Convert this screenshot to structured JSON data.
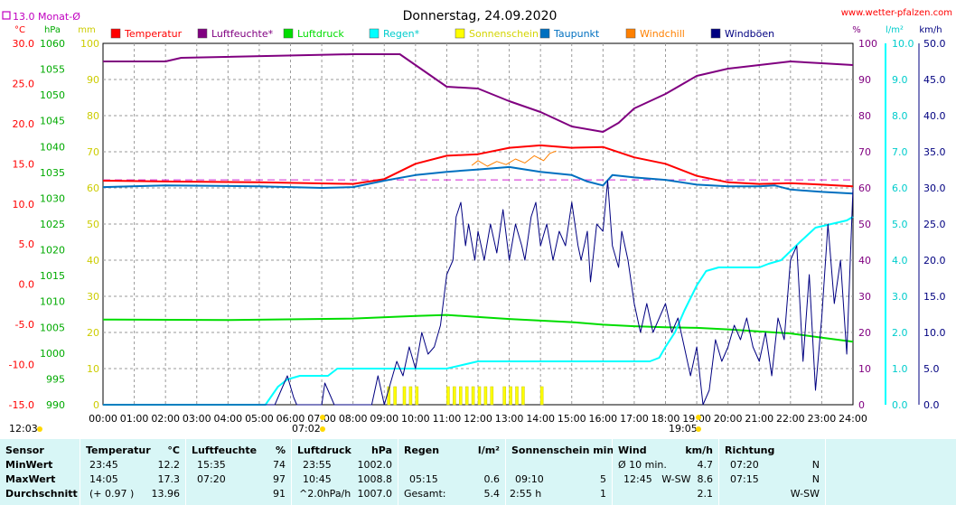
{
  "header": {
    "title": "Donnerstag, 24.09.2020",
    "site": "www.wetter-pfalzen.com",
    "monthly_avg": "13.0 Monat-Ø"
  },
  "axes_units": {
    "temp": "°C",
    "pressure": "hPa",
    "mm": "mm",
    "percent": "%",
    "rain": "l/m²",
    "wind": "km/h"
  },
  "legend": [
    {
      "label": "Temperatur",
      "color": "#ff0000"
    },
    {
      "label": "Luftfeuchte*",
      "color": "#800080"
    },
    {
      "label": "Luftdruck",
      "color": "#00dd00"
    },
    {
      "label": "Regen*",
      "color": "#00ffff"
    },
    {
      "label": "Sonnenschein",
      "color": "#ffff00"
    },
    {
      "label": "Taupunkt",
      "color": "#0070c0"
    },
    {
      "label": "Windchill",
      "color": "#ff8000"
    },
    {
      "label": "Windböen",
      "color": "#000080"
    }
  ],
  "footer": {
    "sunrise": "07:02",
    "sunset": "19:05",
    "left_time": "12:03"
  },
  "chart_data": {
    "type": "line",
    "x": [
      "00:00",
      "01:00",
      "02:00",
      "03:00",
      "04:00",
      "05:00",
      "06:00",
      "07:00",
      "08:00",
      "09:00",
      "10:00",
      "11:00",
      "12:00",
      "13:00",
      "14:00",
      "15:00",
      "16:00",
      "17:00",
      "18:00",
      "19:00",
      "20:00",
      "21:00",
      "22:00",
      "23:00",
      "24:00"
    ],
    "scales": {
      "temp": {
        "ticks": [
          "30.0",
          "25.0",
          "20.0",
          "15.0",
          "10.0",
          "5.0",
          "0.0",
          "-5.0",
          "-10.0",
          "-15.0"
        ],
        "ylim": [
          -15,
          30
        ]
      },
      "pressure": {
        "ticks": [
          "1060",
          "1055",
          "1050",
          "1045",
          "1040",
          "1035",
          "1030",
          "1025",
          "1020",
          "1015",
          "1010",
          "1005",
          "1000",
          "995",
          "990"
        ],
        "ylim": [
          990,
          1060
        ]
      },
      "mm": {
        "ticks": [
          "100",
          "90",
          "80",
          "70",
          "60",
          "50",
          "40",
          "30",
          "20",
          "10",
          "0"
        ],
        "ylim": [
          0,
          100
        ]
      },
      "percent": {
        "ticks": [
          "100",
          "90",
          "80",
          "70",
          "60",
          "50",
          "40",
          "30",
          "20",
          "10",
          "0"
        ],
        "ylim": [
          0,
          100
        ]
      },
      "rain": {
        "ticks": [
          "10.0",
          "9.0",
          "8.0",
          "7.0",
          "6.0",
          "5.0",
          "4.0",
          "3.0",
          "2.0",
          "1.0",
          "0.0"
        ],
        "ylim": [
          0,
          10
        ]
      },
      "wind": {
        "ticks": [
          "50.0",
          "45.0",
          "40.0",
          "35.0",
          "30.0",
          "25.0",
          "20.0",
          "15.0",
          "10.0",
          "5.0",
          "0.0"
        ],
        "ylim": [
          0,
          50
        ]
      }
    },
    "monthly_avg_temp": 13.0,
    "series": [
      {
        "name": "Temperatur",
        "scale": "temp",
        "color": "#ff0000",
        "width": 2,
        "points": [
          [
            0,
            12.9
          ],
          [
            2,
            12.8
          ],
          [
            5,
            12.7
          ],
          [
            8,
            12.5
          ],
          [
            9,
            13.1
          ],
          [
            10,
            15.0
          ],
          [
            11,
            16.0
          ],
          [
            12,
            16.2
          ],
          [
            13,
            17.0
          ],
          [
            14,
            17.3
          ],
          [
            15,
            17.0
          ],
          [
            16,
            17.1
          ],
          [
            17,
            15.8
          ],
          [
            18,
            15.0
          ],
          [
            19,
            13.5
          ],
          [
            20,
            12.7
          ],
          [
            21,
            12.5
          ],
          [
            22,
            12.6
          ],
          [
            23,
            12.4
          ],
          [
            24,
            12.2
          ]
        ]
      },
      {
        "name": "Luftfeuchte*",
        "scale": "percent",
        "color": "#800080",
        "width": 2,
        "points": [
          [
            0,
            95
          ],
          [
            2,
            95
          ],
          [
            2.5,
            96
          ],
          [
            8,
            97
          ],
          [
            9.5,
            97
          ],
          [
            10,
            94
          ],
          [
            11,
            88
          ],
          [
            12,
            87.5
          ],
          [
            13,
            84
          ],
          [
            14,
            81
          ],
          [
            15,
            77
          ],
          [
            16,
            75.5
          ],
          [
            16.5,
            78
          ],
          [
            17,
            82
          ],
          [
            18,
            86
          ],
          [
            19,
            91
          ],
          [
            20,
            93
          ],
          [
            21,
            94
          ],
          [
            22,
            95
          ],
          [
            23,
            94.5
          ],
          [
            24,
            94
          ]
        ]
      },
      {
        "name": "Luftdruck",
        "scale": "pressure",
        "color": "#00dd00",
        "width": 2,
        "points": [
          [
            0,
            1006.5
          ],
          [
            4,
            1006.4
          ],
          [
            8,
            1006.7
          ],
          [
            10,
            1007.2
          ],
          [
            11,
            1007.4
          ],
          [
            12,
            1007.0
          ],
          [
            13,
            1006.6
          ],
          [
            14,
            1006.3
          ],
          [
            15,
            1006.0
          ],
          [
            16,
            1005.5
          ],
          [
            17,
            1005.2
          ],
          [
            18,
            1005.0
          ],
          [
            19,
            1004.9
          ],
          [
            20,
            1004.6
          ],
          [
            21,
            1004.2
          ],
          [
            22,
            1003.8
          ],
          [
            23,
            1003.0
          ],
          [
            24,
            1002.2
          ]
        ]
      },
      {
        "name": "Regen*",
        "scale": "rain",
        "color": "#00ffff",
        "width": 2,
        "points": [
          [
            0,
            0
          ],
          [
            5.2,
            0
          ],
          [
            5.6,
            0.5
          ],
          [
            5.9,
            0.7
          ],
          [
            6.3,
            0.8
          ],
          [
            7.2,
            0.8
          ],
          [
            7.5,
            1.0
          ],
          [
            8,
            1.0
          ],
          [
            10,
            1.0
          ],
          [
            11,
            1.0
          ],
          [
            11.5,
            1.1
          ],
          [
            12,
            1.2
          ],
          [
            13,
            1.2
          ],
          [
            17,
            1.2
          ],
          [
            17.5,
            1.2
          ],
          [
            17.8,
            1.3
          ],
          [
            18,
            1.6
          ],
          [
            18.3,
            2.0
          ],
          [
            18.6,
            2.6
          ],
          [
            19,
            3.3
          ],
          [
            19.3,
            3.7
          ],
          [
            19.7,
            3.8
          ],
          [
            20.5,
            3.8
          ],
          [
            21,
            3.8
          ],
          [
            21.3,
            3.9
          ],
          [
            21.7,
            4.0
          ],
          [
            22.3,
            4.5
          ],
          [
            22.8,
            4.9
          ],
          [
            23.3,
            5.0
          ],
          [
            23.8,
            5.1
          ],
          [
            24,
            5.2
          ]
        ]
      },
      {
        "name": "Taupunkt",
        "scale": "temp",
        "color": "#0070c0",
        "width": 2,
        "points": [
          [
            0,
            12.1
          ],
          [
            2,
            12.3
          ],
          [
            5,
            12.2
          ],
          [
            7,
            12.0
          ],
          [
            8,
            12.1
          ],
          [
            9,
            12.9
          ],
          [
            10,
            13.6
          ],
          [
            11,
            14.0
          ],
          [
            12,
            14.3
          ],
          [
            13,
            14.6
          ],
          [
            14,
            14.0
          ],
          [
            15,
            13.6
          ],
          [
            15.5,
            12.8
          ],
          [
            16,
            12.3
          ],
          [
            16.3,
            13.6
          ],
          [
            17,
            13.3
          ],
          [
            18,
            13.0
          ],
          [
            19,
            12.4
          ],
          [
            20,
            12.2
          ],
          [
            21,
            12.2
          ],
          [
            21.5,
            12.3
          ],
          [
            22,
            11.8
          ],
          [
            23,
            11.5
          ],
          [
            24,
            11.3
          ]
        ]
      },
      {
        "name": "Windchill",
        "scale": "temp",
        "color": "#ff8000",
        "width": 1,
        "points": [
          [
            11.8,
            14.8
          ],
          [
            12,
            15.4
          ],
          [
            12.3,
            14.7
          ],
          [
            12.6,
            15.3
          ],
          [
            12.9,
            14.9
          ],
          [
            13.2,
            15.6
          ],
          [
            13.5,
            15.1
          ],
          [
            13.8,
            16.0
          ],
          [
            14.1,
            15.4
          ],
          [
            14.3,
            16.3
          ],
          [
            14.5,
            16.6
          ]
        ]
      },
      {
        "name": "Windböen",
        "scale": "wind",
        "color": "#000080",
        "width": 1,
        "points": [
          [
            0,
            0
          ],
          [
            5.5,
            0
          ],
          [
            5.7,
            2
          ],
          [
            5.9,
            4
          ],
          [
            6.1,
            1
          ],
          [
            6.2,
            0
          ],
          [
            7,
            0
          ],
          [
            7.1,
            3
          ],
          [
            7.3,
            1
          ],
          [
            7.4,
            0
          ],
          [
            8.6,
            0
          ],
          [
            8.8,
            4
          ],
          [
            9.0,
            0
          ],
          [
            9.2,
            3
          ],
          [
            9.4,
            6
          ],
          [
            9.6,
            4
          ],
          [
            9.8,
            8
          ],
          [
            10.0,
            5
          ],
          [
            10.2,
            10
          ],
          [
            10.4,
            7
          ],
          [
            10.6,
            8
          ],
          [
            10.8,
            11
          ],
          [
            11.0,
            18
          ],
          [
            11.2,
            20
          ],
          [
            11.3,
            26
          ],
          [
            11.45,
            28
          ],
          [
            11.6,
            22
          ],
          [
            11.7,
            25
          ],
          [
            11.9,
            20
          ],
          [
            12.0,
            24
          ],
          [
            12.2,
            20
          ],
          [
            12.4,
            25
          ],
          [
            12.6,
            21
          ],
          [
            12.8,
            27
          ],
          [
            13.0,
            20
          ],
          [
            13.2,
            25
          ],
          [
            13.4,
            22
          ],
          [
            13.5,
            20
          ],
          [
            13.7,
            26
          ],
          [
            13.85,
            28
          ],
          [
            14.0,
            22
          ],
          [
            14.2,
            25
          ],
          [
            14.4,
            20
          ],
          [
            14.6,
            24
          ],
          [
            14.8,
            22
          ],
          [
            15.0,
            28
          ],
          [
            15.2,
            22
          ],
          [
            15.3,
            20
          ],
          [
            15.5,
            24
          ],
          [
            15.6,
            17
          ],
          [
            15.8,
            25
          ],
          [
            16.0,
            24
          ],
          [
            16.15,
            31
          ],
          [
            16.3,
            22
          ],
          [
            16.5,
            19
          ],
          [
            16.6,
            24
          ],
          [
            16.8,
            20
          ],
          [
            17.0,
            14
          ],
          [
            17.2,
            10
          ],
          [
            17.4,
            14
          ],
          [
            17.6,
            10
          ],
          [
            17.8,
            12
          ],
          [
            18.0,
            14
          ],
          [
            18.2,
            10
          ],
          [
            18.4,
            12
          ],
          [
            18.6,
            8
          ],
          [
            18.8,
            4
          ],
          [
            19.0,
            8
          ],
          [
            19.2,
            0
          ],
          [
            19.4,
            2
          ],
          [
            19.6,
            9
          ],
          [
            19.8,
            6
          ],
          [
            20.0,
            8
          ],
          [
            20.2,
            11
          ],
          [
            20.4,
            9
          ],
          [
            20.6,
            12
          ],
          [
            20.8,
            8
          ],
          [
            21.0,
            6
          ],
          [
            21.2,
            10
          ],
          [
            21.4,
            4
          ],
          [
            21.6,
            12
          ],
          [
            21.8,
            9
          ],
          [
            22.0,
            20
          ],
          [
            22.2,
            22
          ],
          [
            22.4,
            6
          ],
          [
            22.6,
            18
          ],
          [
            22.8,
            2
          ],
          [
            23.0,
            12
          ],
          [
            23.2,
            25
          ],
          [
            23.4,
            14
          ],
          [
            23.6,
            20
          ],
          [
            23.8,
            7
          ],
          [
            24,
            30
          ]
        ]
      }
    ],
    "sunshine_bars": [
      9.1,
      9.3,
      9.6,
      9.8,
      10.0,
      11.0,
      11.2,
      11.4,
      11.6,
      11.8,
      12.0,
      12.2,
      12.4,
      12.8,
      13.0,
      13.2,
      13.4,
      14.0
    ]
  },
  "stats": {
    "columns": [
      {
        "title": "Sensor",
        "unit": "",
        "rows": [
          "MinWert",
          "MaxWert",
          "Durchschnitt"
        ]
      },
      {
        "title": "Temperatur",
        "unit": "°C",
        "rows": [
          [
            "23:45",
            "12.2"
          ],
          [
            "14:05",
            "17.3"
          ],
          [
            "(+ 0.97 )",
            "13.96"
          ]
        ]
      },
      {
        "title": "Luftfeuchte",
        "unit": "%",
        "rows": [
          [
            "15:35",
            "74"
          ],
          [
            "07:20",
            "97"
          ],
          [
            "",
            "91"
          ]
        ]
      },
      {
        "title": "Luftdruck",
        "unit": "hPa",
        "rows": [
          [
            "23:55",
            "1002.0"
          ],
          [
            "10:45",
            "1008.8"
          ],
          [
            "^2.0hPa/h",
            "1007.0"
          ]
        ]
      },
      {
        "title": "Regen",
        "unit": "l/m²",
        "rows": [
          [
            "",
            ""
          ],
          [
            "05:15",
            "0.6"
          ],
          [
            "Gesamt:",
            "5.4"
          ]
        ]
      },
      {
        "title": "Sonnenschein min",
        "unit": "",
        "rows": [
          [
            "",
            ""
          ],
          [
            "09:10",
            "5"
          ],
          [
            "2:55 h",
            "1"
          ]
        ]
      },
      {
        "title": "Wind",
        "unit": "km/h",
        "rows": [
          [
            "Ø 10 min.",
            "4.7"
          ],
          [
            "12:45   W-SW",
            "8.6"
          ],
          [
            "",
            "2.1"
          ]
        ]
      },
      {
        "title": "Richtung",
        "unit": "",
        "rows": [
          [
            "07:20",
            "N"
          ],
          [
            "07:15",
            "N"
          ],
          [
            "",
            "W-SW"
          ]
        ]
      }
    ]
  }
}
